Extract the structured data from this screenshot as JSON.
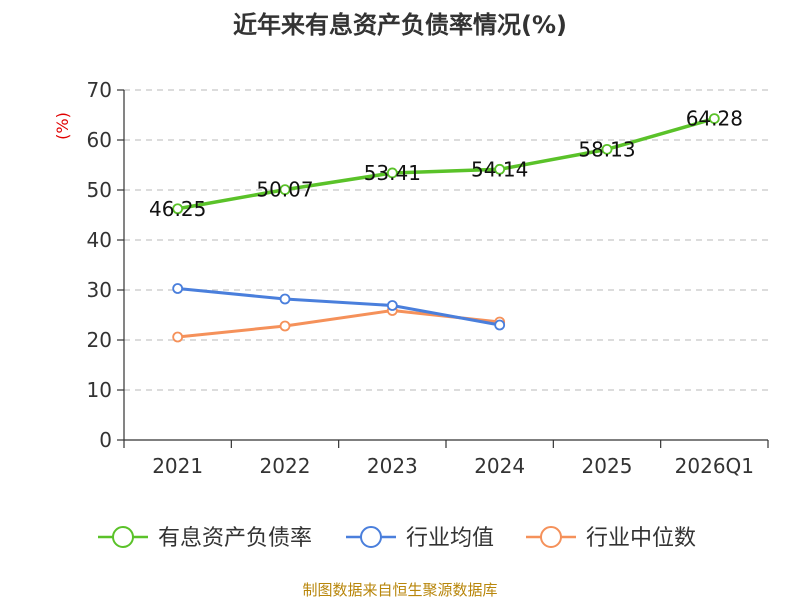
{
  "chart_data": {
    "type": "line",
    "title": "近年来有息资产负债率情况(%)",
    "ylabel": "(%)",
    "xlabel": "",
    "categories": [
      "2021",
      "2022",
      "2023",
      "2024",
      "2025",
      "2026Q1"
    ],
    "ylim": [
      0,
      70
    ],
    "yticks": [
      0,
      10,
      20,
      30,
      40,
      50,
      60,
      70
    ],
    "grid": true,
    "legend_position": "bottom",
    "series": [
      {
        "name": "有息资产负债率",
        "color": "#5ac229",
        "values": [
          46.25,
          50.07,
          53.41,
          54.14,
          58.13,
          64.28
        ],
        "labels": [
          "46.25",
          "50.07",
          "53.41",
          "54.14",
          "58.13",
          "64.28"
        ]
      },
      {
        "name": "行业均值",
        "color": "#4a7fdc",
        "values": [
          30.3,
          28.2,
          26.9,
          23.0,
          null,
          null
        ]
      },
      {
        "name": "行业中位数",
        "color": "#f5915a",
        "values": [
          20.6,
          22.8,
          25.9,
          23.6,
          null,
          null
        ]
      }
    ],
    "footer": "制图数据来自恒生聚源数据库"
  }
}
